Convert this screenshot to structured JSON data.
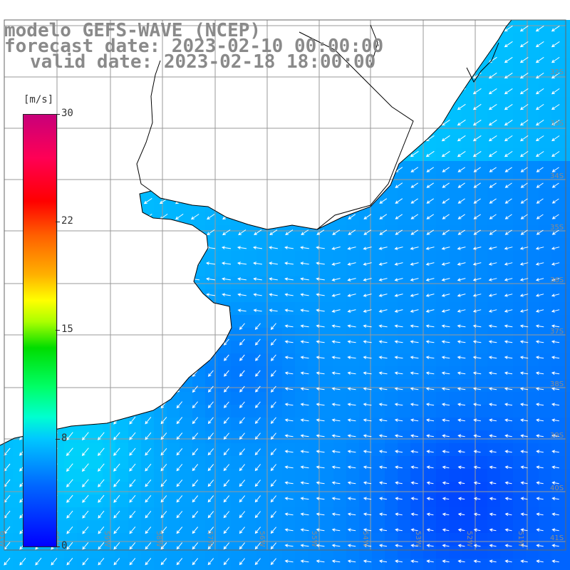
{
  "title": {
    "line1": "modelo GEFS-WAVE (NCEP)",
    "line2": "forecast date: 2023-02-10 00:00:00",
    "line3": "valid date: 2023-02-18 18:00:00"
  },
  "colorbar": {
    "unit": "[m/s]",
    "ticks": [
      {
        "label": "30",
        "value": 30
      },
      {
        "label": "22",
        "value": 22
      },
      {
        "label": "15",
        "value": 15
      },
      {
        "label": "8",
        "value": 8
      },
      {
        "label": "0",
        "value": 0
      }
    ]
  },
  "lon_labels": [
    "61W",
    "60W",
    "59W",
    "58W",
    "57W",
    "56W",
    "55W",
    "54W",
    "53W",
    "52W",
    "51W"
  ],
  "lat_labels": [
    "32S",
    "33S",
    "34S",
    "35S",
    "36S",
    "37S",
    "38S",
    "39S",
    "40S",
    "41S"
  ],
  "colors": {
    "land": "#ffffff",
    "grid": "#9a9a9a",
    "coast": "#000000",
    "arrow": "#ffffff",
    "title": "#8a8a8a"
  },
  "wind_field": {
    "variable": "wind speed",
    "units": "m/s",
    "range": [
      0,
      30
    ],
    "general_direction": "from east (arrows pointing west / southwest)"
  }
}
